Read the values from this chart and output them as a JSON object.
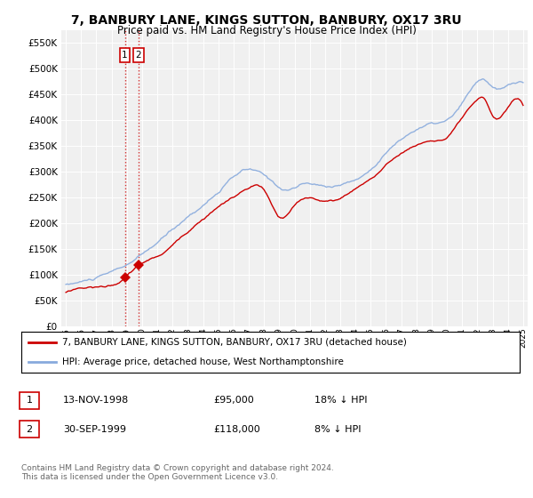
{
  "title": "7, BANBURY LANE, KINGS SUTTON, BANBURY, OX17 3RU",
  "subtitle": "Price paid vs. HM Land Registry's House Price Index (HPI)",
  "legend_label_red": "7, BANBURY LANE, KINGS SUTTON, BANBURY, OX17 3RU (detached house)",
  "legend_label_blue": "HPI: Average price, detached house, West Northamptonshire",
  "transaction1_date": "13-NOV-1998",
  "transaction1_price": "£95,000",
  "transaction1_hpi": "18% ↓ HPI",
  "transaction2_date": "30-SEP-1999",
  "transaction2_price": "£118,000",
  "transaction2_hpi": "8% ↓ HPI",
  "footnote": "Contains HM Land Registry data © Crown copyright and database right 2024.\nThis data is licensed under the Open Government Licence v3.0.",
  "ylim": [
    0,
    575000
  ],
  "yticks": [
    0,
    50000,
    100000,
    150000,
    200000,
    250000,
    300000,
    350000,
    400000,
    450000,
    500000,
    550000
  ],
  "background_color": "#ffffff",
  "plot_bg_color": "#f0f0f0",
  "grid_color": "#ffffff",
  "red_color": "#cc0000",
  "blue_color": "#88aadd",
  "t1_x": 1998.87,
  "t1_y": 95000,
  "t2_x": 1999.75,
  "t2_y": 118000,
  "xmin": 1994.7,
  "xmax": 2025.3
}
